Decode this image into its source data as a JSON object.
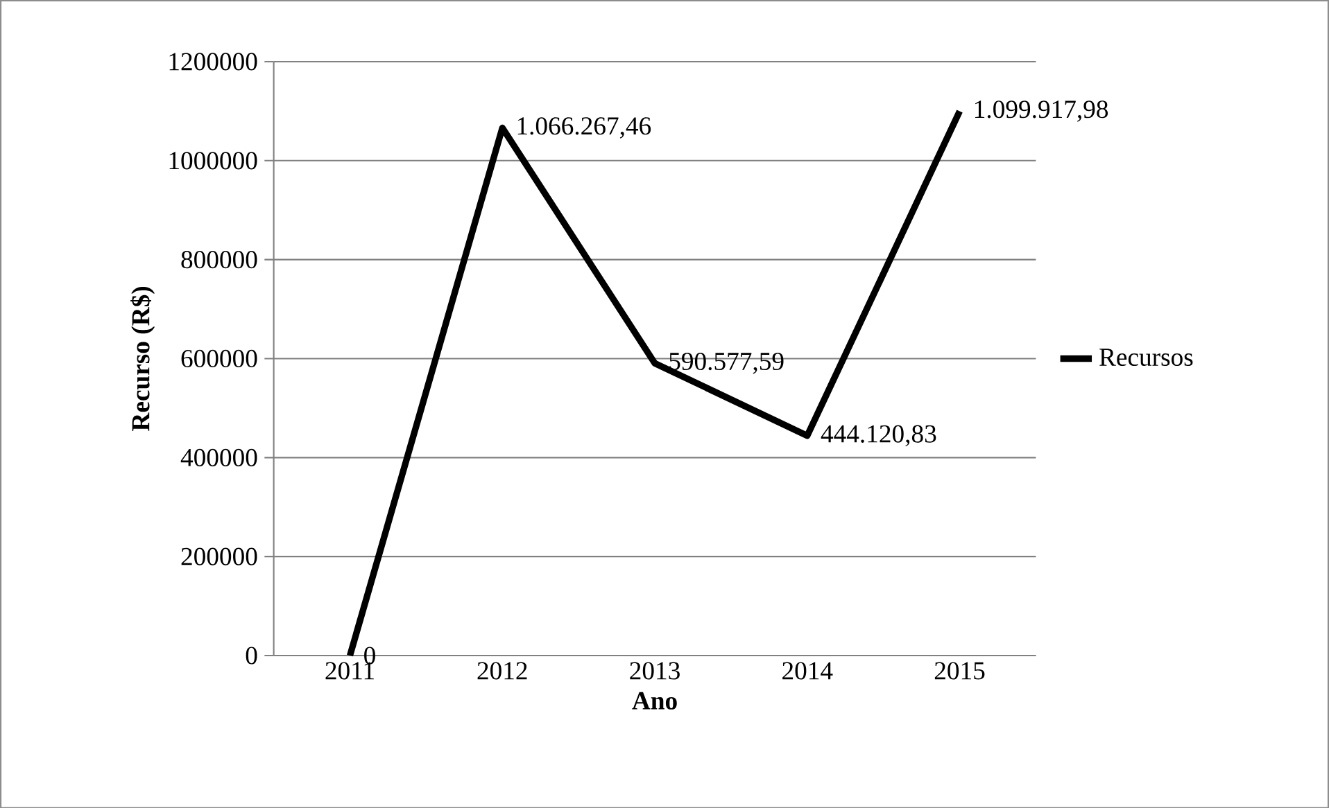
{
  "chart_data": {
    "type": "line",
    "xlabel": "Ano",
    "ylabel": "Recurso (R$)",
    "categories": [
      "2011",
      "2012",
      "2013",
      "2014",
      "2015"
    ],
    "series": [
      {
        "name": "Recursos",
        "color": "#000000",
        "values": [
          0,
          1066267.46,
          590577.59,
          444120.83,
          1099917.98
        ],
        "value_labels": [
          "0",
          "1.066.267,46",
          "590.577,59",
          "444.120,83",
          "1.099.917,98"
        ]
      }
    ],
    "ylim": [
      0,
      1200000
    ],
    "yticks": [
      0,
      200000,
      400000,
      600000,
      800000,
      1000000,
      1200000
    ],
    "grid": "y",
    "legend": "right",
    "marker": "none",
    "line_style": "solid"
  }
}
